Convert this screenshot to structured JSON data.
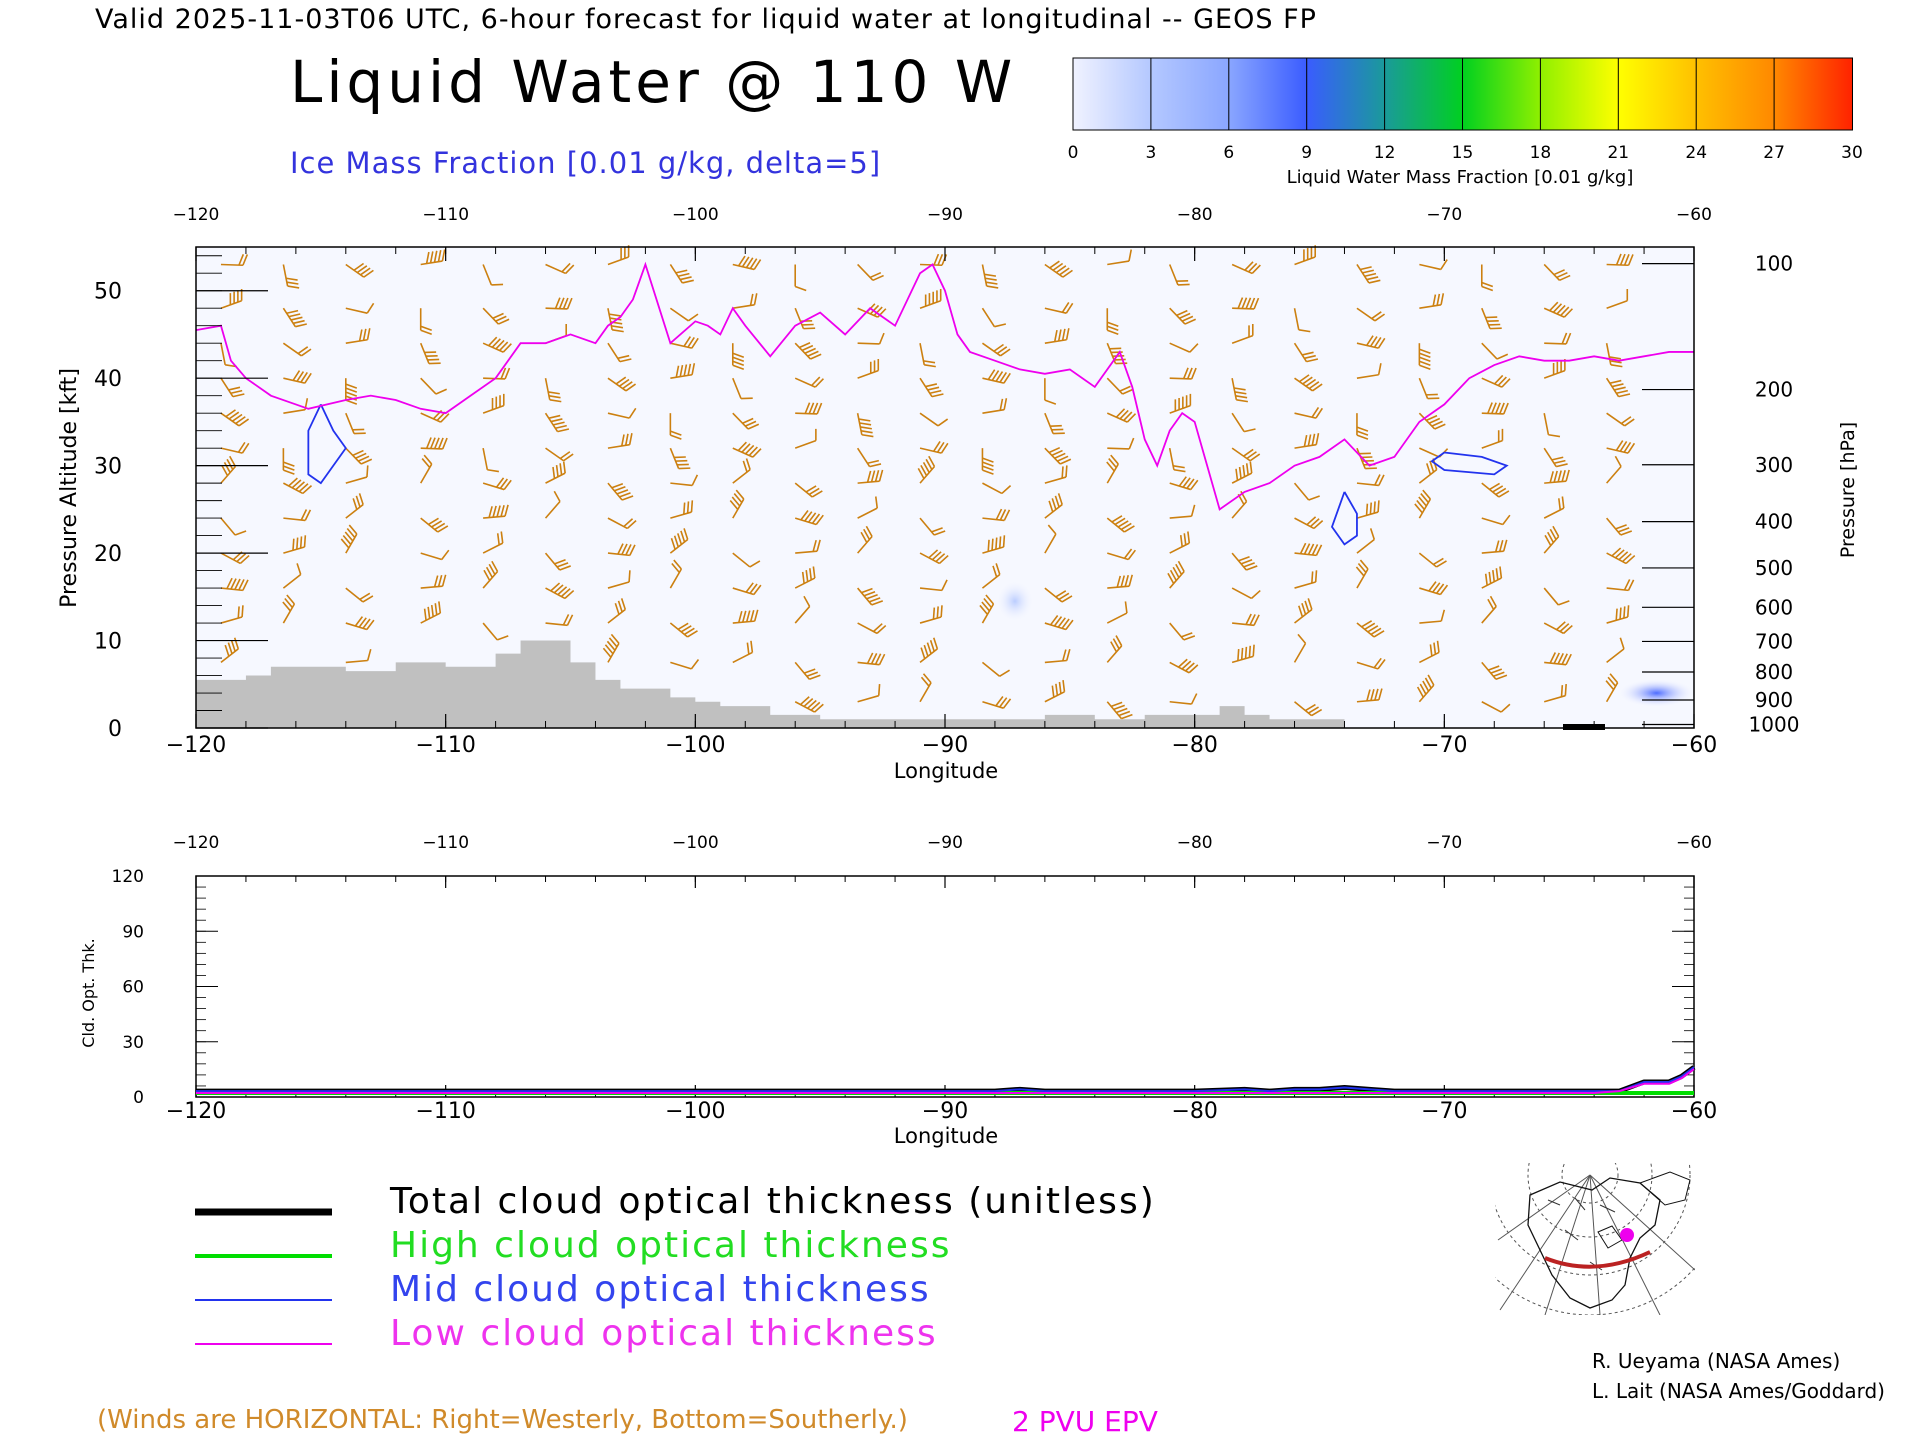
{
  "header": {
    "valid_line": "Valid 2025-11-03T06 UTC, 6-hour forecast for liquid water at longitudinal -- GEOS FP",
    "title": "Liquid Water @ 110 W",
    "subtitle": "Ice Mass Fraction [0.01 g/kg, delta=5]"
  },
  "colorbar": {
    "label": "Liquid Water Mass Fraction [0.01 g/kg]",
    "ticks": [
      "0",
      "3",
      "6",
      "9",
      "12",
      "15",
      "18",
      "21",
      "24",
      "27",
      "30"
    ],
    "colors": [
      "#f0f2ff",
      "#b4c8ff",
      "#8aa6ff",
      "#3a5cff",
      "#1a9a9a",
      "#00d020",
      "#90f000",
      "#ffff00",
      "#ffc000",
      "#ff8800",
      "#ff2200"
    ]
  },
  "chart_data": [
    {
      "type": "heatmap",
      "title": "Liquid Water @ 110 W",
      "xlabel": "Longitude",
      "ylabel": "Pressure Altitude [kft]",
      "y2label": "Pressure [hPa]",
      "xlim": [
        -120,
        -60
      ],
      "ylim": [
        0,
        55
      ],
      "x_ticks": [
        "-120",
        "-110",
        "-100",
        "-90",
        "-80",
        "-70",
        "-60"
      ],
      "y_ticks": [
        "0",
        "10",
        "20",
        "30",
        "40",
        "50"
      ],
      "pressure_ticks": [
        "100",
        "200",
        "300",
        "400",
        "500",
        "600",
        "700",
        "800",
        "900",
        "1000"
      ],
      "pressure_ticks_kft": [
        53.1,
        38.7,
        30.1,
        23.6,
        18.3,
        13.8,
        9.9,
        6.4,
        3.2,
        0.4
      ],
      "epv_2pvu_line": {
        "color": "#ee00ee",
        "x": [
          -120,
          -119,
          -118.6,
          -118,
          -117,
          -116,
          -115.5,
          -114,
          -113,
          -112,
          -111,
          -110,
          -109,
          -108,
          -107,
          -106,
          -105,
          -104,
          -103.5,
          -103,
          -102.5,
          -102,
          -101,
          -100,
          -99.5,
          -99,
          -98.5,
          -98,
          -97,
          -96,
          -95,
          -94,
          -93,
          -92,
          -91,
          -90.5,
          -90,
          -89.5,
          -89,
          -88,
          -87,
          -86,
          -85,
          -84,
          -83,
          -82.5,
          -82,
          -81.5,
          -81,
          -80.5,
          -80,
          -79.5,
          -79,
          -78,
          -77,
          -76,
          -75,
          -74,
          -73,
          -72,
          -71,
          -70,
          -69,
          -68,
          -67,
          -66,
          -65,
          -64,
          -63,
          -62,
          -61,
          -60
        ],
        "y": [
          45.5,
          46,
          42,
          40,
          38,
          37,
          36.5,
          37.5,
          38,
          37.5,
          36.5,
          36,
          38,
          40,
          44,
          44,
          45,
          44,
          46,
          47,
          49,
          53,
          44,
          46.5,
          46,
          45,
          48,
          46,
          42.5,
          46,
          47.5,
          45,
          48,
          46,
          52,
          53,
          50,
          45,
          43,
          42,
          41,
          40.5,
          41,
          39,
          43,
          39,
          33,
          30,
          34,
          36,
          35,
          30,
          25,
          27,
          28,
          30,
          31,
          33,
          30,
          31,
          35,
          37,
          40,
          41.5,
          42.5,
          42,
          42,
          42.5,
          42,
          42.5,
          43,
          43
        ]
      },
      "ice_contours": [
        {
          "label": "5",
          "color": "#2233ee",
          "x": [
            -115,
            -114.5,
            -114,
            -114.5,
            -115,
            -115.5,
            -115.5,
            -115
          ],
          "y": [
            37,
            34,
            32,
            30,
            28,
            29,
            34,
            37
          ]
        },
        {
          "label": "5",
          "color": "#2233ee",
          "x": [
            -74,
            -73.5,
            -73.5,
            -74,
            -74.5,
            -74
          ],
          "y": [
            27,
            24.5,
            22,
            21,
            23,
            27
          ]
        },
        {
          "label": "5",
          "color": "#2233ee",
          "x": [
            -70,
            -68.5,
            -67.5,
            -68,
            -70,
            -70.5,
            -70
          ],
          "y": [
            31.5,
            31,
            30,
            29,
            29.5,
            30.5,
            31.5
          ]
        }
      ],
      "liquid_water_patches": [
        {
          "lon": -87.2,
          "kft": 14.5,
          "value": 1
        },
        {
          "lon": -61.5,
          "kft": 4,
          "value": 6
        }
      ],
      "terrain_kft": {
        "x": [
          -120,
          -119,
          -118,
          -117,
          -116,
          -115,
          -114,
          -113,
          -112,
          -111,
          -110,
          -109,
          -108,
          -107,
          -106,
          -105,
          -104,
          -103,
          -102,
          -101,
          -100,
          -99,
          -98,
          -97,
          -96,
          -95,
          -94,
          -93,
          -92,
          -91,
          -90,
          -89,
          -88,
          -87,
          -86,
          -85,
          -84,
          -83,
          -82,
          -81,
          -80,
          -79,
          -78,
          -77,
          -76,
          -75
        ],
        "y": [
          5.5,
          5.5,
          6,
          7,
          7,
          7,
          6.5,
          6.5,
          7.5,
          7.5,
          7,
          7,
          8.5,
          10,
          10,
          7.5,
          5.5,
          4.5,
          4.5,
          3.5,
          3,
          2.5,
          2.5,
          1.5,
          1.5,
          1,
          1,
          1,
          1,
          1,
          1,
          1,
          1,
          1,
          1.5,
          1.5,
          1,
          1,
          1.5,
          1.5,
          1.5,
          2.5,
          1.5,
          1,
          1,
          1
        ]
      },
      "wind_barbs": {
        "lons": [
          -119,
          -116.5,
          -114,
          -111,
          -108.5,
          -106,
          -103.5,
          -101,
          -98.5,
          -96,
          -93.5,
          -91,
          -88.5,
          -86,
          -83.5,
          -81,
          -78.5,
          -76,
          -73.5,
          -71,
          -68.5,
          -66,
          -63.5
        ],
        "kfts": [
          3,
          7.5,
          12,
          16,
          20,
          24,
          28,
          32,
          36,
          40,
          44,
          48,
          53
        ],
        "color": "#cc8010"
      }
    },
    {
      "type": "line",
      "xlabel": "Longitude",
      "ylabel": "Cld. Opt. Thk.",
      "xlim": [
        -120,
        -60
      ],
      "ylim": [
        0,
        120
      ],
      "x_ticks": [
        "-120",
        "-110",
        "-100",
        "-90",
        "-80",
        "-70",
        "-60"
      ],
      "y_ticks": [
        "0",
        "30",
        "60",
        "90",
        "120"
      ],
      "x": [
        -120,
        -110,
        -100,
        -90,
        -88,
        -87,
        -86,
        -80,
        -78,
        -77,
        -76,
        -75,
        -74,
        -73,
        -72,
        -70,
        -66,
        -65,
        -64,
        -63,
        -62,
        -61,
        -60.5,
        -60
      ],
      "series": [
        {
          "name": "Total cloud optical thickness (unitless)",
          "color": "#000000",
          "values": [
            1,
            1,
            1,
            1,
            1,
            2,
            1,
            1,
            2,
            1,
            2,
            2,
            3,
            2,
            1,
            1,
            1,
            1,
            1,
            1,
            6,
            6,
            9,
            14
          ]
        },
        {
          "name": "High cloud optical thickness",
          "color": "#00dd00",
          "values": [
            0,
            0,
            0,
            0,
            0,
            0,
            0,
            0,
            0,
            0,
            0,
            0,
            0,
            0,
            0,
            0,
            0,
            0,
            0,
            0,
            0,
            0,
            0,
            0
          ]
        },
        {
          "name": "Mid cloud optical thickness",
          "color": "#2233ee",
          "values": [
            1,
            1,
            1,
            1,
            1,
            2,
            1,
            1,
            2,
            1,
            2,
            2,
            3,
            2,
            1,
            1,
            1,
            1,
            1,
            1,
            6,
            6,
            9,
            14
          ]
        },
        {
          "name": "Low cloud optical thickness",
          "color": "#ee00ee",
          "values": [
            0,
            0,
            0,
            0,
            0,
            0,
            0,
            0,
            0,
            0,
            0,
            0,
            0,
            0,
            0,
            0,
            0,
            0,
            0,
            1,
            5,
            5,
            8,
            13
          ]
        }
      ]
    }
  ],
  "legend": {
    "total": "Total cloud optical thickness (unitless)",
    "high": "High cloud optical thickness",
    "mid": "Mid cloud optical thickness",
    "low": "Low cloud optical thickness",
    "colors": {
      "total": "#000000",
      "high": "#00dd00",
      "mid": "#2233ee",
      "low": "#ee00ee"
    }
  },
  "credits": {
    "line1": "R. Ueyama (NASA Ames)",
    "line2": "L. Lait (NASA Ames/Goddard)"
  },
  "footer": {
    "winds_note": "(Winds are HORIZONTAL: Right=Westerly, Bottom=Southerly.)",
    "epv_label": "2 PVU EPV"
  },
  "inset_map": {
    "icon": "north-america-polar-map-icon",
    "marker_color": "#ee00ee",
    "track_color": "#bb2222"
  }
}
